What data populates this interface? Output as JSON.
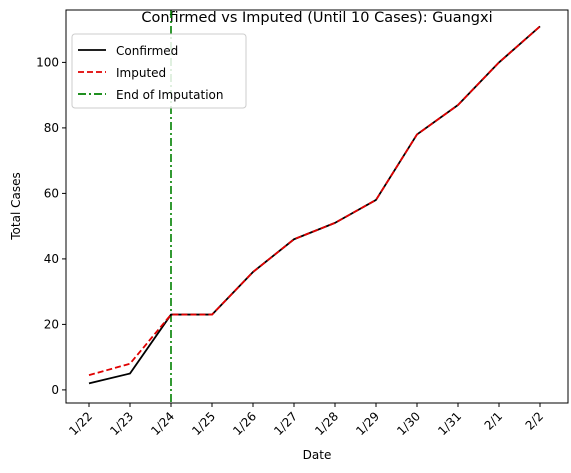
{
  "chart_data": {
    "type": "line",
    "title": "Confirmed vs Imputed (Until 10 Cases): Guangxi",
    "xlabel": "Date",
    "ylabel": "Total Cases",
    "categories": [
      "1/22",
      "1/23",
      "1/24",
      "1/25",
      "1/26",
      "1/27",
      "1/28",
      "1/29",
      "1/30",
      "1/31",
      "2/1",
      "2/2"
    ],
    "ylim": [
      -4,
      116
    ],
    "yticks": [
      0,
      20,
      40,
      60,
      80,
      100
    ],
    "grid": false,
    "legend_position": "top-left",
    "series": [
      {
        "name": "Confirmed",
        "color": "#000000",
        "style": "solid",
        "values": [
          2,
          5,
          23,
          23,
          36,
          46,
          51,
          58,
          78,
          87,
          100,
          111
        ]
      },
      {
        "name": "Imputed",
        "color": "#e00000",
        "style": "dashed",
        "values": [
          4.5,
          8,
          23,
          23,
          36,
          46,
          51,
          58,
          78,
          87,
          100,
          111
        ]
      }
    ],
    "vline": {
      "name": "End of Imputation",
      "x": "1/24",
      "color": "#008000",
      "style": "dashdot"
    }
  }
}
